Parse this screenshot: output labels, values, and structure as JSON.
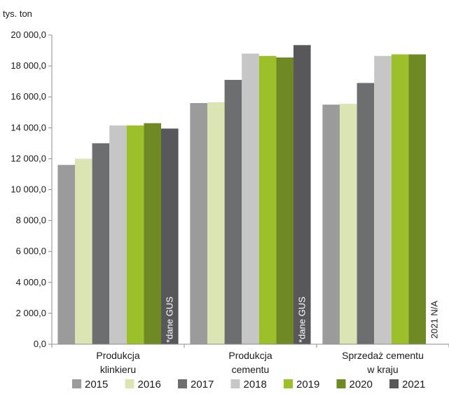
{
  "chart_data": {
    "type": "bar",
    "unit_label": "tys. ton",
    "categories": [
      [
        "Produkcja",
        "klinkieru"
      ],
      [
        "Produkcja",
        "cementu"
      ],
      [
        "Sprzedaż cementu",
        "w kraju"
      ]
    ],
    "series": [
      {
        "name": "2015",
        "color": "#9b9b9b",
        "values": [
          11600,
          15600,
          15500
        ]
      },
      {
        "name": "2016",
        "color": "#dbe5b3",
        "values": [
          12000,
          15650,
          15550
        ]
      },
      {
        "name": "2017",
        "color": "#6d6e70",
        "values": [
          13000,
          17100,
          16900
        ]
      },
      {
        "name": "2018",
        "color": "#c6c6c6",
        "values": [
          14150,
          18800,
          18650
        ]
      },
      {
        "name": "2019",
        "color": "#9bc02a",
        "values": [
          14150,
          18650,
          18750
        ]
      },
      {
        "name": "2020",
        "color": "#6f8a24",
        "values": [
          14300,
          18550,
          18750
        ]
      },
      {
        "name": "2021",
        "color": "#58585a",
        "values": [
          13950,
          19350,
          null
        ]
      }
    ],
    "annotations": [
      {
        "category_index": 0,
        "text": "*dane GUS",
        "color": "#ffffff"
      },
      {
        "category_index": 1,
        "text": "*dane GUS",
        "color": "#ffffff"
      },
      {
        "category_index": 2,
        "text": "2021 N/A",
        "color": "#1a1a1a"
      }
    ],
    "yticks": [
      "0,0",
      "2 000,0",
      "4 000,0",
      "6 000,0",
      "8 000,0",
      "10 000,0",
      "12 000,0",
      "14 000,0",
      "16 000,0",
      "18 000,0",
      "20 000,0"
    ],
    "ylim": [
      0,
      20000
    ],
    "grid": false,
    "legend_position": "bottom"
  }
}
